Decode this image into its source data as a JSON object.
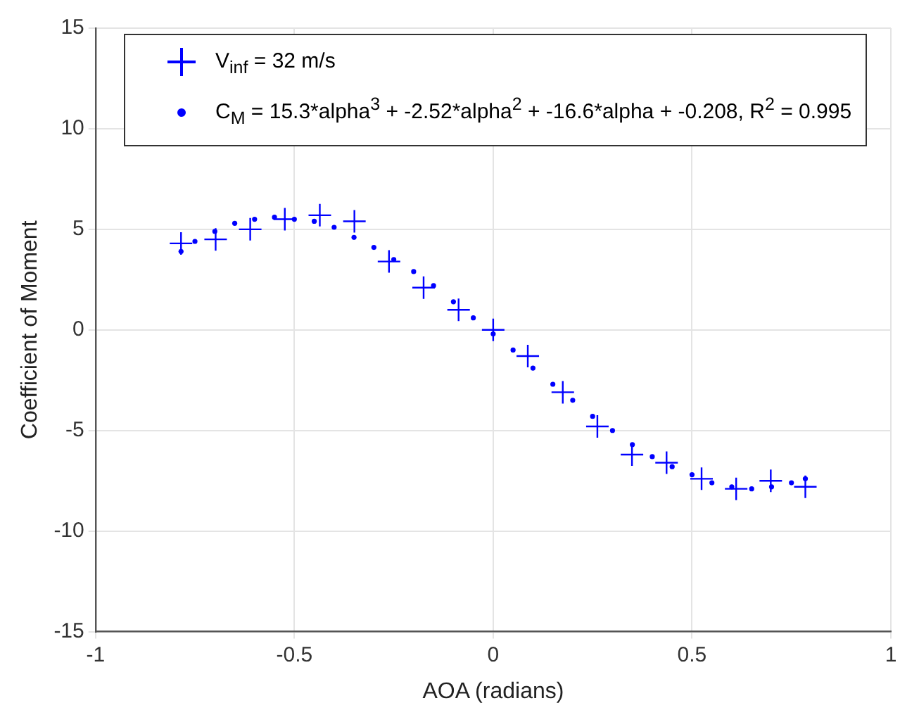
{
  "chart_data": {
    "type": "scatter",
    "xlabel": "AOA (radians)",
    "ylabel": "Coefficient of Moment",
    "xlim": [
      -1,
      1
    ],
    "xticks": [
      -1,
      -0.5,
      0,
      0.5,
      1
    ],
    "ylim": [
      -15,
      15
    ],
    "yticks": [
      -15,
      -10,
      -5,
      0,
      5,
      10,
      15
    ],
    "grid": true,
    "legend": "top",
    "series": [
      {
        "name": "V$_{inf}$ = 32 m/s",
        "color": "#0000ff",
        "marker": "cross",
        "x": [
          -0.785,
          -0.698,
          -0.611,
          -0.524,
          -0.436,
          -0.349,
          -0.262,
          -0.175,
          -0.087,
          0,
          0.087,
          0.175,
          0.262,
          0.349,
          0.436,
          0.524,
          0.611,
          0.698,
          0.785
        ],
        "values": [
          4.3,
          4.5,
          5.0,
          5.5,
          5.7,
          5.4,
          3.4,
          2.1,
          1.0,
          0,
          -1.3,
          -3.1,
          -4.8,
          -6.2,
          -6.6,
          -7.4,
          -7.9,
          -7.5,
          -7.8
        ]
      },
      {
        "name": "C$_{M}$ = 15.3*alpha$^{3}$ + -2.52*alpha$^{2}$ + -16.6*alpha + -0.208, R$^{2}$ = 0.995",
        "color": "#0000ff",
        "marker": "circle",
        "x": [
          -0.785,
          -0.75,
          -0.7,
          -0.65,
          -0.6,
          -0.55,
          -0.5,
          -0.45,
          -0.4,
          -0.35,
          -0.3,
          -0.25,
          -0.2,
          -0.15,
          -0.1,
          -0.05,
          0,
          0.05,
          0.1,
          0.15,
          0.2,
          0.25,
          0.3,
          0.35,
          0.4,
          0.45,
          0.5,
          0.55,
          0.6,
          0.65,
          0.7,
          0.75,
          0.785
        ],
        "values": [
          3.9,
          4.4,
          4.9,
          5.3,
          5.5,
          5.6,
          5.5,
          5.4,
          5.1,
          4.6,
          4.1,
          3.5,
          2.9,
          2.2,
          1.4,
          0.6,
          -0.2,
          -1.0,
          -1.9,
          -2.7,
          -3.5,
          -4.3,
          -5.0,
          -5.7,
          -6.3,
          -6.8,
          -7.2,
          -7.6,
          -7.8,
          -7.9,
          -7.8,
          -7.6,
          -7.4
        ]
      }
    ]
  }
}
